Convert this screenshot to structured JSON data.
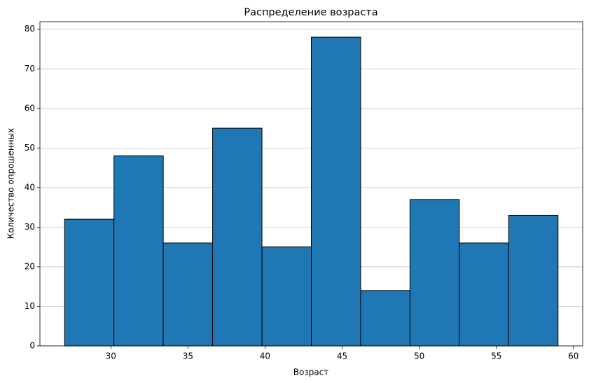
{
  "chart_data": {
    "type": "histogram",
    "title": "Распределение возраста",
    "x_label": "Возраст",
    "y_label": "Количество опрошенных",
    "bins": [
      27,
      30.2,
      33.4,
      36.6,
      39.8,
      43,
      46.2,
      49.4,
      52.6,
      55.8,
      59
    ],
    "values": [
      32,
      48,
      26,
      55,
      25,
      78,
      14,
      37,
      26,
      33
    ],
    "color": "#1f77b4",
    "edgecolor": "#000000",
    "xlim": [
      25.4,
      60.6
    ],
    "xticks": [
      30,
      35,
      40,
      45,
      50,
      55,
      60
    ],
    "ylim": [
      0,
      81.9
    ],
    "yticks": [
      0,
      10,
      20,
      30,
      40,
      50,
      60,
      70,
      80
    ],
    "grid": "y"
  }
}
